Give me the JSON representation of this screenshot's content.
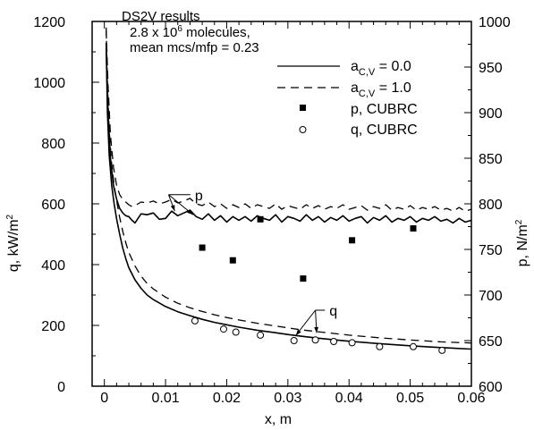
{
  "chart_data": {
    "type": "line",
    "xlabel": "x, m",
    "ylabel_left": {
      "text": "q, kW/m",
      "superscript": "2"
    },
    "ylabel_right": {
      "text": "p, N/m",
      "superscript": "2"
    },
    "xlim": [
      -0.002,
      0.06
    ],
    "ylim_left": [
      0,
      1200
    ],
    "ylim_right": [
      600,
      1000
    ],
    "x_ticks": [
      0,
      0.01,
      0.02,
      0.03,
      0.04,
      0.05,
      0.06
    ],
    "x_tick_labels": [
      "0",
      "0.01",
      "0.02",
      "0.03",
      "0.04",
      "0.05",
      "0.06"
    ],
    "y_left_ticks": [
      0,
      200,
      400,
      600,
      800,
      1000,
      1200
    ],
    "y_left_tick_labels": [
      "0",
      "200",
      "400",
      "600",
      "800",
      "1000",
      "1200"
    ],
    "y_right_ticks": [
      600,
      650,
      700,
      750,
      800,
      850,
      900,
      950,
      1000
    ],
    "y_right_tick_labels": [
      "600",
      "650",
      "700",
      "750",
      "800",
      "850",
      "900",
      "950",
      "1000"
    ],
    "annotation": {
      "line1": "DS2V results",
      "line2_pre": "2.8 x 10",
      "line2_sup": "6",
      "line2_post": " molecules,",
      "line3": "mean mcs/mfp = 0.23"
    },
    "legend": [
      {
        "style": "solid",
        "text_main": "a",
        "text_sub": "C,V",
        "text_rest": " = 0.0"
      },
      {
        "style": "dashed",
        "text_main": "a",
        "text_sub": "C,V",
        "text_rest": " = 1.0"
      },
      {
        "style": "filled-square",
        "text_main": "p,  CUBRC"
      },
      {
        "style": "open-circle",
        "text_main": "q,  CUBRC"
      }
    ],
    "series": [
      {
        "name": "q, a_CV = 0.0",
        "axis": "left",
        "style": "solid",
        "x": [
          0.0003,
          0.0005,
          0.0008,
          0.0012,
          0.0016,
          0.002,
          0.0025,
          0.003,
          0.0035,
          0.004,
          0.005,
          0.006,
          0.007,
          0.008,
          0.01,
          0.012,
          0.014,
          0.016,
          0.018,
          0.02,
          0.022,
          0.025,
          0.028,
          0.03,
          0.032,
          0.035,
          0.04,
          0.045,
          0.05,
          0.055,
          0.06
        ],
        "y": [
          1130,
          900,
          760,
          660,
          600,
          550,
          500,
          455,
          420,
          390,
          350,
          322,
          300,
          285,
          262,
          245,
          232,
          220,
          210,
          202,
          194,
          184,
          176,
          170,
          165,
          158,
          148,
          140,
          133,
          127,
          122
        ]
      },
      {
        "name": "q, a_CV = 1.0",
        "axis": "left",
        "style": "dashed",
        "x": [
          0.0003,
          0.0005,
          0.0008,
          0.0012,
          0.0016,
          0.002,
          0.0025,
          0.003,
          0.0035,
          0.004,
          0.005,
          0.006,
          0.007,
          0.008,
          0.01,
          0.012,
          0.014,
          0.016,
          0.018,
          0.02,
          0.022,
          0.025,
          0.028,
          0.03,
          0.032,
          0.035,
          0.04,
          0.045,
          0.05,
          0.055,
          0.06
        ],
        "y": [
          1180,
          1000,
          840,
          730,
          660,
          610,
          555,
          510,
          472,
          440,
          396,
          362,
          338,
          320,
          293,
          273,
          258,
          246,
          235,
          226,
          218,
          207,
          198,
          192,
          186,
          179,
          168,
          159,
          152,
          146,
          142
        ]
      },
      {
        "name": "p, a_CV = 0.0",
        "axis": "right",
        "style": "solid",
        "x": [
          0.0003,
          0.0006,
          0.001,
          0.0015,
          0.002,
          0.0025,
          0.003,
          0.0035,
          0.004,
          0.0045,
          0.005,
          0.0055,
          0.006,
          0.007,
          0.008,
          0.009,
          0.01,
          0.011,
          0.012,
          0.013,
          0.014,
          0.015,
          0.016,
          0.017,
          0.018,
          0.019,
          0.02,
          0.021,
          0.022,
          0.023,
          0.024,
          0.025,
          0.026,
          0.027,
          0.028,
          0.029,
          0.03,
          0.031,
          0.032,
          0.033,
          0.034,
          0.035,
          0.036,
          0.037,
          0.038,
          0.039,
          0.04,
          0.041,
          0.042,
          0.043,
          0.044,
          0.045,
          0.046,
          0.047,
          0.048,
          0.049,
          0.05,
          0.051,
          0.052,
          0.053,
          0.054,
          0.055,
          0.056,
          0.057,
          0.058,
          0.059,
          0.06
        ],
        "y": [
          970,
          900,
          850,
          820,
          805,
          795,
          790,
          787,
          786,
          782,
          779,
          784,
          789,
          788,
          790,
          783,
          784,
          792,
          787,
          790,
          793,
          786,
          783,
          789,
          782,
          787,
          780,
          786,
          782,
          786,
          781,
          787,
          784,
          782,
          788,
          780,
          786,
          784,
          781,
          788,
          782,
          786,
          780,
          785,
          782,
          787,
          781,
          784,
          786,
          779,
          785,
          782,
          787,
          780,
          784,
          782,
          786,
          780,
          784,
          782,
          786,
          781,
          783,
          779,
          784,
          780,
          782
        ]
      },
      {
        "name": "p, a_CV = 1.0",
        "axis": "right",
        "style": "dashed",
        "x": [
          0.0003,
          0.0006,
          0.001,
          0.0015,
          0.002,
          0.0025,
          0.003,
          0.0035,
          0.004,
          0.0045,
          0.005,
          0.0055,
          0.006,
          0.007,
          0.008,
          0.009,
          0.01,
          0.011,
          0.012,
          0.013,
          0.014,
          0.015,
          0.016,
          0.017,
          0.018,
          0.019,
          0.02,
          0.021,
          0.022,
          0.023,
          0.024,
          0.025,
          0.026,
          0.027,
          0.028,
          0.029,
          0.03,
          0.031,
          0.032,
          0.033,
          0.034,
          0.035,
          0.036,
          0.037,
          0.038,
          0.039,
          0.04,
          0.041,
          0.042,
          0.043,
          0.044,
          0.045,
          0.046,
          0.047,
          0.048,
          0.049,
          0.05,
          0.051,
          0.052,
          0.053,
          0.054,
          0.055,
          0.056,
          0.057,
          0.058,
          0.059,
          0.06
        ],
        "y": [
          990,
          930,
          875,
          840,
          820,
          810,
          805,
          802,
          799,
          797,
          798,
          800,
          802,
          801,
          803,
          800,
          802,
          805,
          801,
          803,
          806,
          800,
          798,
          802,
          797,
          800,
          795,
          799,
          796,
          800,
          795,
          799,
          797,
          795,
          800,
          794,
          798,
          796,
          794,
          799,
          795,
          798,
          794,
          797,
          795,
          799,
          794,
          796,
          798,
          793,
          797,
          795,
          799,
          793,
          796,
          794,
          798,
          793,
          796,
          794,
          797,
          793,
          795,
          792,
          796,
          792,
          794
        ]
      }
    ],
    "p_cubrc": {
      "axis": "right",
      "x": [
        0.016,
        0.021,
        0.0255,
        0.0325,
        0.0405,
        0.0505
      ],
      "y": [
        752,
        738,
        783,
        718,
        760,
        773
      ]
    },
    "q_cubrc": {
      "axis": "left",
      "x": [
        0.0148,
        0.0195,
        0.0215,
        0.0255,
        0.031,
        0.0345,
        0.0375,
        0.0405,
        0.045,
        0.0505,
        0.0552
      ],
      "y": [
        215,
        188,
        178,
        168,
        150,
        152,
        147,
        143,
        130,
        130,
        118
      ]
    },
    "callouts": [
      {
        "label": "p",
        "axis": "right",
        "text_at": [
          0.0145,
          810
        ],
        "join_at": [
          0.0105,
          810
        ],
        "targets": [
          [
            0.0115,
            792
          ],
          [
            0.0145,
            788
          ]
        ]
      },
      {
        "label": "q",
        "axis": "left",
        "text_at": [
          0.0365,
          250
        ],
        "join_at": [
          0.0345,
          250
        ],
        "targets": [
          [
            0.0313,
            167
          ],
          [
            0.0347,
            175
          ]
        ]
      }
    ]
  }
}
